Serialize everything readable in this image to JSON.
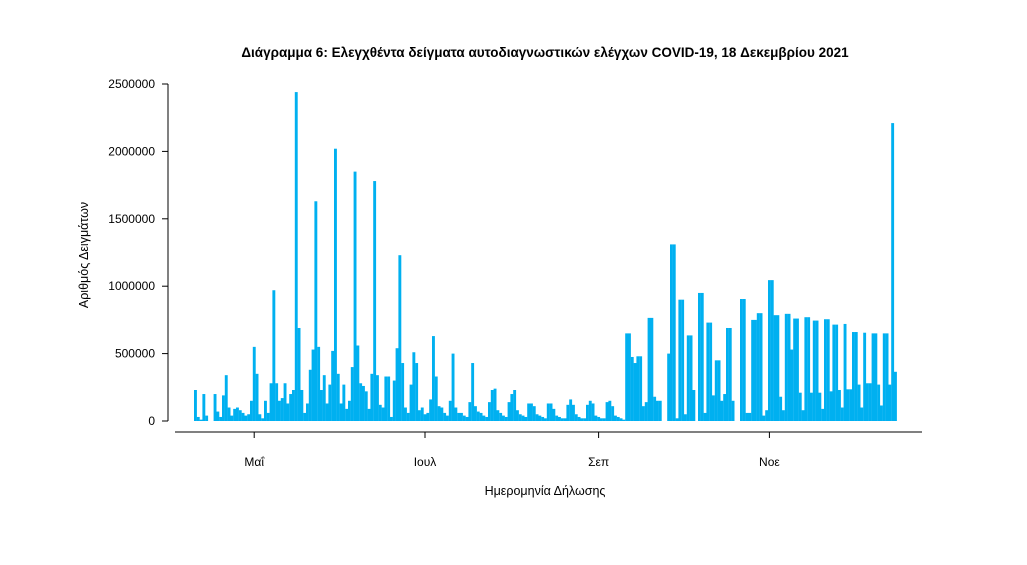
{
  "chart_data": {
    "type": "bar",
    "title": "Διάγραμμα 6: Ελεγχθέντα δείγματα αυτοδιαγνωστικών ελέγχων COVID-19, 18 Δεκεμβρίου 2021",
    "xlabel": "Ημερομηνία Δήλωσης",
    "ylabel": "Αριθμός Δειγμάτων",
    "ylim": [
      0,
      2500000
    ],
    "yticks": [
      0,
      500000,
      1000000,
      1500000,
      2000000,
      2500000
    ],
    "ytick_labels": [
      "0",
      "500000",
      "1000000",
      "1500000",
      "2000000",
      "2500000"
    ],
    "x_unit": "day index (daily bars)",
    "xticks": [
      {
        "label": "Μαΐ",
        "day": 21
      },
      {
        "label": "Ιουλ",
        "day": 82
      },
      {
        "label": "Σεπ",
        "day": 144
      },
      {
        "label": "Νοε",
        "day": 205
      }
    ],
    "grid": false,
    "bar_color": "#00b0f0",
    "values": [
      230000,
      30000,
      10000,
      200000,
      40000,
      0,
      0,
      200000,
      70000,
      30000,
      190000,
      340000,
      100000,
      40000,
      90000,
      100000,
      80000,
      60000,
      40000,
      50000,
      150000,
      550000,
      350000,
      50000,
      20000,
      150000,
      60000,
      280000,
      970000,
      280000,
      150000,
      170000,
      280000,
      130000,
      200000,
      230000,
      2440000,
      690000,
      230000,
      60000,
      130000,
      380000,
      530000,
      1630000,
      550000,
      230000,
      340000,
      130000,
      270000,
      520000,
      2020000,
      350000,
      130000,
      270000,
      90000,
      150000,
      400000,
      1850000,
      560000,
      280000,
      260000,
      220000,
      90000,
      350000,
      1780000,
      340000,
      120000,
      100000,
      330000,
      330000,
      30000,
      300000,
      540000,
      1230000,
      430000,
      100000,
      60000,
      270000,
      510000,
      430000,
      80000,
      100000,
      50000,
      60000,
      160000,
      630000,
      330000,
      110000,
      100000,
      60000,
      40000,
      150000,
      500000,
      100000,
      60000,
      60000,
      40000,
      30000,
      140000,
      430000,
      110000,
      70000,
      60000,
      40000,
      30000,
      140000,
      230000,
      240000,
      80000,
      60000,
      40000,
      30000,
      140000,
      200000,
      230000,
      80000,
      50000,
      40000,
      30000,
      130000,
      130000,
      110000,
      50000,
      40000,
      30000,
      20000,
      130000,
      130000,
      90000,
      40000,
      30000,
      20000,
      20000,
      120000,
      160000,
      120000,
      50000,
      30000,
      20000,
      20000,
      120000,
      150000,
      130000,
      40000,
      30000,
      20000,
      20000,
      140000,
      150000,
      110000,
      40000,
      30000,
      20000,
      10000,
      650000,
      650000,
      475000,
      430000,
      480000,
      480000,
      110000,
      140000,
      765000,
      765000,
      180000,
      150000,
      150000,
      0,
      0,
      500000,
      1310000,
      1310000,
      20000,
      900000,
      900000,
      50000,
      635000,
      635000,
      230000,
      0,
      950000,
      950000,
      60000,
      730000,
      730000,
      190000,
      450000,
      450000,
      150000,
      200000,
      690000,
      690000,
      150000,
      0,
      0,
      905000,
      905000,
      60000,
      60000,
      750000,
      750000,
      800000,
      800000,
      40000,
      80000,
      1045000,
      1045000,
      785000,
      785000,
      180000,
      80000,
      795000,
      795000,
      530000,
      760000,
      760000,
      210000,
      80000,
      770000,
      770000,
      210000,
      745000,
      745000,
      210000,
      90000,
      755000,
      755000,
      220000,
      715000,
      715000,
      230000,
      100000,
      720000,
      235000,
      235000,
      660000,
      660000,
      270000,
      100000,
      655000,
      280000,
      280000,
      650000,
      650000,
      270000,
      115000,
      650000,
      650000,
      270000,
      2210000,
      365000
    ]
  }
}
